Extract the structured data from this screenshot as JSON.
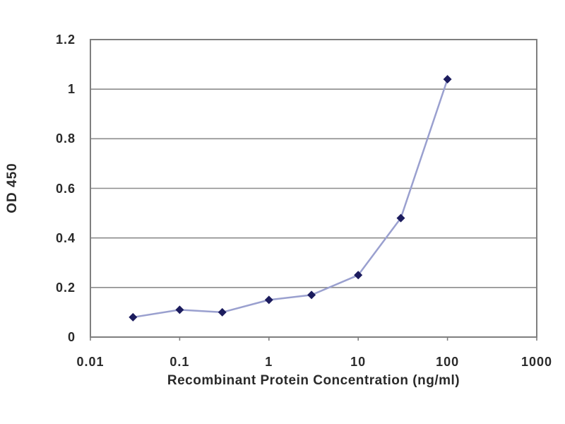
{
  "figure": {
    "background": "#ffffff"
  },
  "chart_data": {
    "type": "line",
    "title": "",
    "xlabel": "Recombinant Protein Concentration (ng/ml)",
    "ylabel": "OD 450",
    "x_scale": "log",
    "xlim": [
      0.01,
      1000
    ],
    "ylim": [
      0,
      1.2
    ],
    "x_ticks": [
      0.01,
      0.1,
      1,
      10,
      100,
      1000
    ],
    "x_tick_labels": [
      "0.01",
      "0.1",
      "1",
      "10",
      "100",
      "1000"
    ],
    "y_ticks": [
      0,
      0.2,
      0.4,
      0.6,
      0.8,
      1,
      1.2
    ],
    "y_tick_labels": [
      "0",
      "0.2",
      "0.4",
      "0.6",
      "0.8",
      "1",
      "1.2"
    ],
    "grid": "horizontal",
    "legend": "none",
    "series": [
      {
        "name": "OD 450",
        "x": [
          0.03,
          0.1,
          0.3,
          1,
          3,
          10,
          30,
          100
        ],
        "y": [
          0.08,
          0.11,
          0.1,
          0.15,
          0.17,
          0.25,
          0.48,
          1.04
        ],
        "line_color": "#9aa0cf",
        "marker": "diamond",
        "marker_color": "#1c1c5e"
      }
    ],
    "colors": {
      "grid": "#8c8c8c",
      "border": "#7f7f7f",
      "tick": "#7f7f7f",
      "text": "#2a2a2a"
    }
  }
}
